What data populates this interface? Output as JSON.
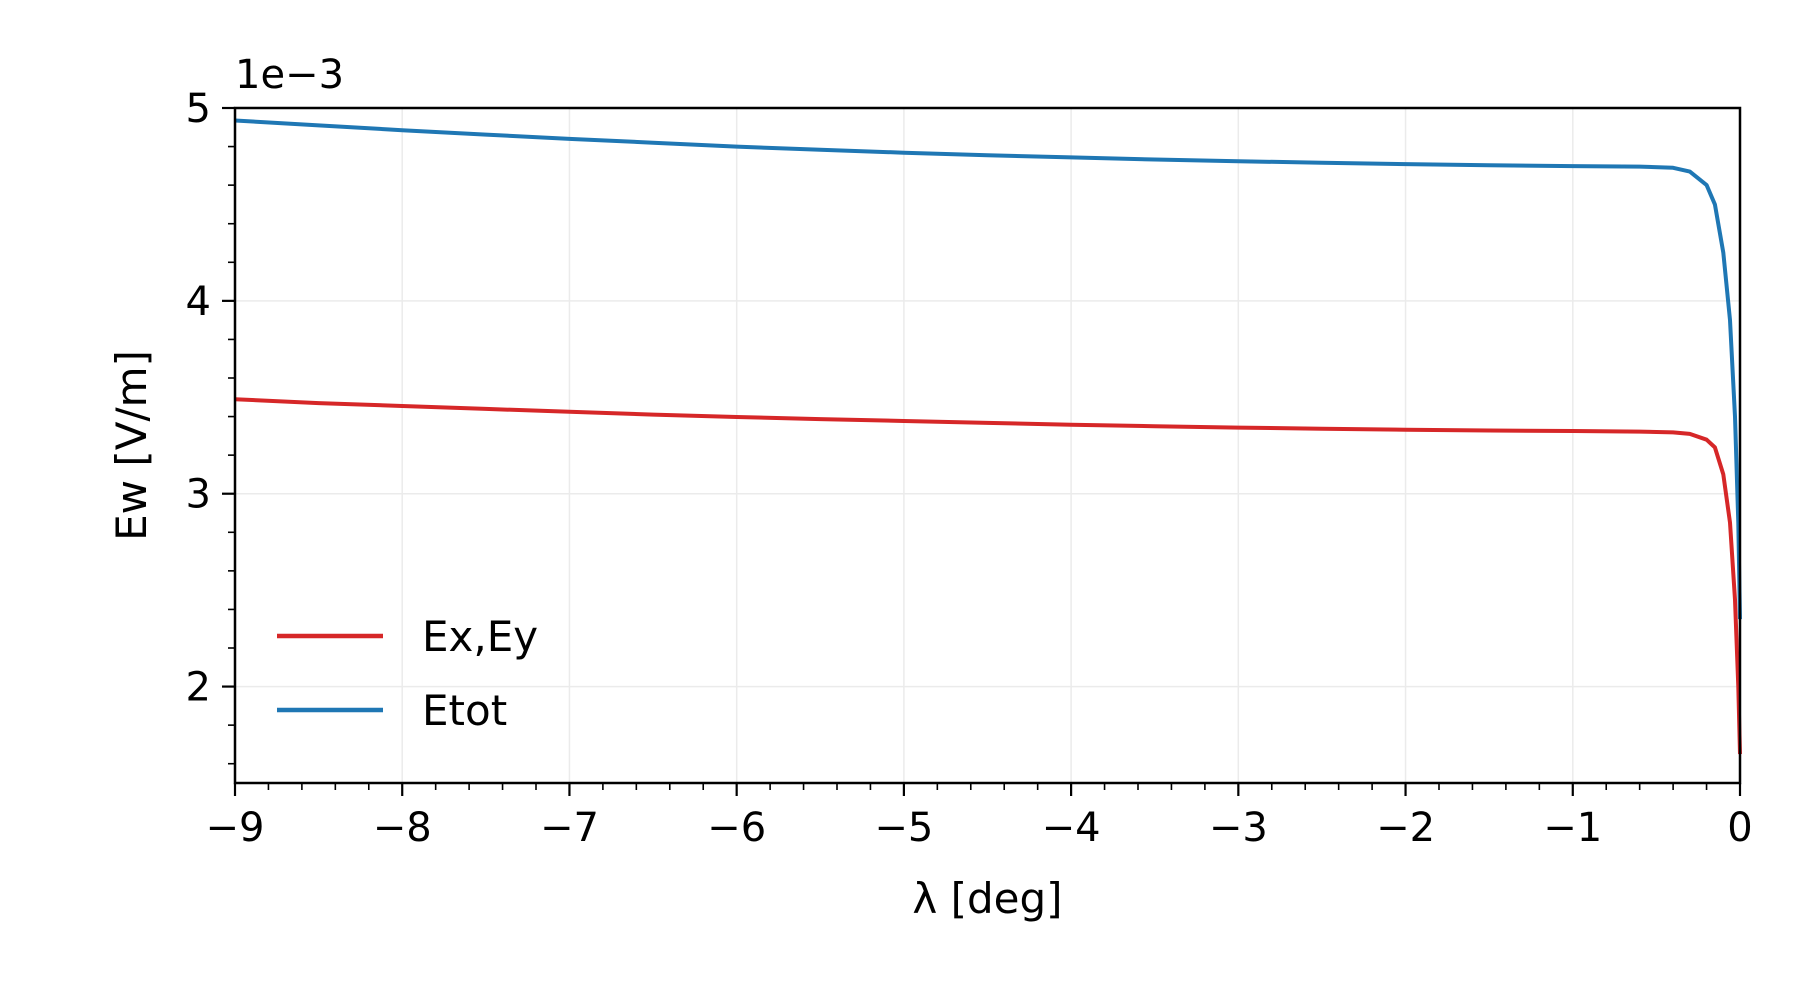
{
  "chart_data": {
    "type": "line",
    "title": "",
    "xlabel": "λ [deg]",
    "ylabel": "Ew [V/m]",
    "y_offset_label": "1e−3",
    "xlim": [
      -9,
      0
    ],
    "ylim": [
      1.5,
      5.0
    ],
    "x_ticks": [
      -9,
      -8,
      -7,
      -6,
      -5,
      -4,
      -3,
      -2,
      -1,
      0
    ],
    "x_tick_labels": [
      "−9",
      "−8",
      "−7",
      "−6",
      "−5",
      "−4",
      "−3",
      "−2",
      "−1",
      "0"
    ],
    "y_ticks": [
      2,
      3,
      4,
      5
    ],
    "y_tick_labels": [
      "2",
      "3",
      "4",
      "5"
    ],
    "grid": true,
    "legend_position": "lower-left",
    "series": [
      {
        "name": "Ex,Ey",
        "color": "#d62728",
        "x": [
          -9,
          -8.5,
          -8,
          -7.5,
          -7,
          -6.5,
          -6,
          -5.5,
          -5,
          -4.5,
          -4,
          -3.5,
          -3,
          -2.5,
          -2,
          -1.5,
          -1,
          -0.6,
          -0.4,
          -0.3,
          -0.2,
          -0.15,
          -0.1,
          -0.06,
          -0.03,
          -0.01,
          0
        ],
        "y": [
          3.49,
          3.47,
          3.455,
          3.44,
          3.425,
          3.41,
          3.398,
          3.387,
          3.377,
          3.367,
          3.358,
          3.35,
          3.343,
          3.337,
          3.332,
          3.328,
          3.325,
          3.322,
          3.318,
          3.31,
          3.28,
          3.24,
          3.1,
          2.85,
          2.45,
          2.0,
          1.65
        ]
      },
      {
        "name": "Etot",
        "color": "#1f77b4",
        "x": [
          -9,
          -8.5,
          -8,
          -7.5,
          -7,
          -6.5,
          -6,
          -5.5,
          -5,
          -4.5,
          -4,
          -3.5,
          -3,
          -2.5,
          -2,
          -1.5,
          -1,
          -0.6,
          -0.4,
          -0.3,
          -0.2,
          -0.15,
          -0.1,
          -0.06,
          -0.03,
          -0.01,
          0
        ],
        "y": [
          4.935,
          4.91,
          4.885,
          4.862,
          4.84,
          4.82,
          4.8,
          4.783,
          4.768,
          4.755,
          4.744,
          4.733,
          4.724,
          4.716,
          4.709,
          4.703,
          4.699,
          4.696,
          4.69,
          4.67,
          4.6,
          4.5,
          4.25,
          3.9,
          3.4,
          2.85,
          2.35
        ]
      }
    ]
  }
}
